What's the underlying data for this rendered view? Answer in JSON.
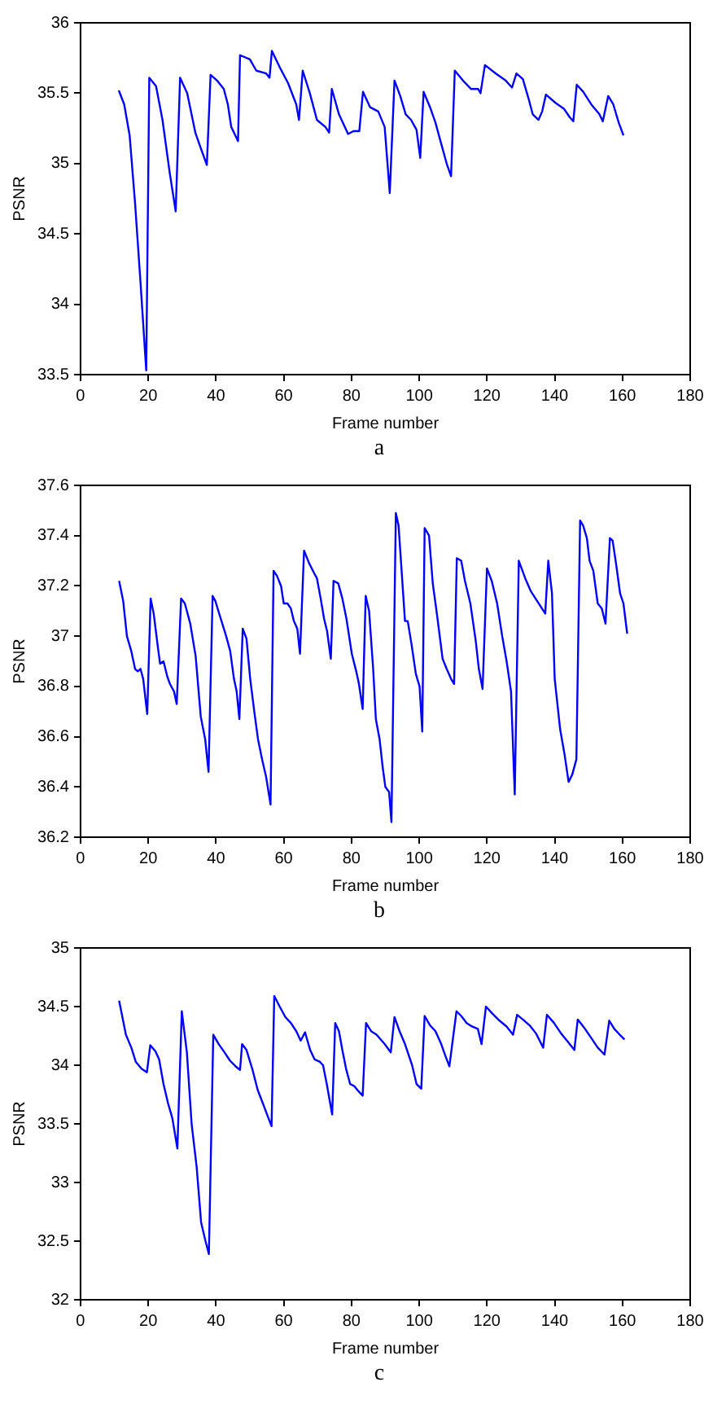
{
  "chart_data": [
    {
      "type": "line",
      "xlabel": "Frame number",
      "ylabel": "PSNR",
      "color": "#0000ff",
      "xlim": [
        0,
        180
      ],
      "xticks": [
        0,
        20,
        40,
        60,
        80,
        100,
        120,
        140,
        160,
        180
      ],
      "ylim": [
        33.5,
        36
      ],
      "yticks": [
        33.5,
        34,
        34.5,
        35,
        35.5,
        36
      ],
      "annotations": [
        "a"
      ],
      "x": [
        11.3,
        12.9,
        14.5,
        16.1,
        17.7,
        19.4,
        20.3,
        22.3,
        24.2,
        26.3,
        28.1,
        29.4,
        31.5,
        33.9,
        35.5,
        37.3,
        38.4,
        40.3,
        42.3,
        43.5,
        44.5,
        46.5,
        47.1,
        50,
        51.9,
        54.8,
        55.8,
        56.5,
        58.9,
        61.3,
        63.7,
        64.5,
        65.6,
        67.7,
        69.8,
        72.3,
        73.4,
        74.2,
        76.3,
        79,
        80.6,
        82.3,
        83.4,
        85.5,
        87.9,
        89.8,
        91.3,
        92.7,
        94.4,
        96,
        97.6,
        99.2,
        100.3,
        101.3,
        103.2,
        104.8,
        106.5,
        108.1,
        109.4,
        110.5,
        112.9,
        115.3,
        117.4,
        118.1,
        119.4,
        122.6,
        125.5,
        127.4,
        128.7,
        130.6,
        132.3,
        133.5,
        135.2,
        136.3,
        137.4,
        140.3,
        142.7,
        144.4,
        145.5,
        146.5,
        148.4,
        150.8,
        153.2,
        154.2,
        155.8,
        157.3,
        158.9,
        160.3
      ],
      "values": [
        35.52,
        35.42,
        35.2,
        34.72,
        34.16,
        33.53,
        35.61,
        35.55,
        35.31,
        34.94,
        34.66,
        35.61,
        35.5,
        35.22,
        35.11,
        34.99,
        35.63,
        35.59,
        35.53,
        35.42,
        35.26,
        35.16,
        35.77,
        35.74,
        35.66,
        35.64,
        35.61,
        35.8,
        35.68,
        35.57,
        35.42,
        35.31,
        35.66,
        35.5,
        35.31,
        35.26,
        35.22,
        35.53,
        35.35,
        35.21,
        35.23,
        35.23,
        35.51,
        35.4,
        35.37,
        35.26,
        34.79,
        35.59,
        35.48,
        35.35,
        35.31,
        35.24,
        35.04,
        35.51,
        35.4,
        35.29,
        35.14,
        35.0,
        34.91,
        35.66,
        35.59,
        35.53,
        35.53,
        35.5,
        35.7,
        35.64,
        35.59,
        35.54,
        35.64,
        35.6,
        35.46,
        35.35,
        35.31,
        35.37,
        35.49,
        35.43,
        35.39,
        35.33,
        35.3,
        35.56,
        35.51,
        35.42,
        35.35,
        35.3,
        35.48,
        35.42,
        35.29,
        35.2
      ]
    },
    {
      "type": "line",
      "xlabel": "Frame number",
      "ylabel": "PSNR",
      "color": "#0000ff",
      "xlim": [
        0,
        180
      ],
      "xticks": [
        0,
        20,
        40,
        60,
        80,
        100,
        120,
        140,
        160,
        180
      ],
      "ylim": [
        36.2,
        37.6
      ],
      "yticks": [
        36.2,
        36.4,
        36.6,
        36.8,
        37,
        37.2,
        37.4,
        37.6
      ],
      "annotations": [
        "b"
      ],
      "x": [
        11.4,
        12.6,
        13.7,
        15,
        16.1,
        16.9,
        17.7,
        18.5,
        19.7,
        20.7,
        21.6,
        22.9,
        23.5,
        24.5,
        25.6,
        26.4,
        27.6,
        28.4,
        29.7,
        30.8,
        32.4,
        34,
        35.5,
        36.8,
        37.8,
        39,
        39.8,
        41.4,
        43,
        44.2,
        45.3,
        46.1,
        46.9,
        47.9,
        49,
        50.1,
        51.3,
        52.4,
        53.6,
        54.8,
        56.1,
        57,
        58,
        59.2,
        60,
        61.1,
        62.1,
        63,
        64,
        64.8,
        66,
        67.5,
        69,
        69.8,
        70.9,
        71.9,
        72.8,
        73.9,
        74.7,
        76.1,
        77.3,
        78.5,
        80.1,
        81.4,
        82.2,
        83.3,
        84.2,
        85.2,
        86.4,
        87.2,
        88.3,
        89.2,
        90,
        91.1,
        91.8,
        93.1,
        93.9,
        95.8,
        96.6,
        97.7,
        99,
        100.1,
        100.9,
        101.6,
        102.9,
        104,
        105.3,
        106.9,
        108.1,
        109.4,
        110.3,
        111.1,
        112.4,
        113.5,
        115.1,
        116.7,
        117.6,
        118.7,
        120,
        121.4,
        123,
        124.5,
        125.8,
        127.1,
        128.2,
        129.4,
        131.3,
        132.9,
        135.3,
        137.2,
        138.1,
        139.2,
        140,
        141.6,
        142.9,
        144.1,
        145.2,
        146.4,
        147.5,
        148.4,
        149.5,
        150.3,
        151.4,
        152.7,
        153.9,
        155,
        156.3,
        157.1,
        158.2,
        159.3,
        160.3,
        161.4
      ],
      "values": [
        37.22,
        37.14,
        37.0,
        36.94,
        36.87,
        36.86,
        36.87,
        36.83,
        36.69,
        37.15,
        37.09,
        36.95,
        36.89,
        36.9,
        36.84,
        36.81,
        36.78,
        36.73,
        37.15,
        37.13,
        37.05,
        36.92,
        36.68,
        36.59,
        36.46,
        37.16,
        37.14,
        37.07,
        37.0,
        36.94,
        36.83,
        36.78,
        36.67,
        37.03,
        36.99,
        36.83,
        36.7,
        36.59,
        36.51,
        36.44,
        36.33,
        37.26,
        37.24,
        37.2,
        37.13,
        37.13,
        37.11,
        37.06,
        37.03,
        36.93,
        37.34,
        37.29,
        37.25,
        37.23,
        37.15,
        37.07,
        37.02,
        36.91,
        37.22,
        37.21,
        37.15,
        37.07,
        36.93,
        36.86,
        36.81,
        36.71,
        37.16,
        37.1,
        36.87,
        36.67,
        36.59,
        36.48,
        36.4,
        36.38,
        36.26,
        37.49,
        37.44,
        37.06,
        37.06,
        36.97,
        36.85,
        36.8,
        36.62,
        37.43,
        37.4,
        37.21,
        37.08,
        36.91,
        36.87,
        36.83,
        36.81,
        37.31,
        37.3,
        37.22,
        37.13,
        36.98,
        36.87,
        36.79,
        37.27,
        37.22,
        37.13,
        37.0,
        36.9,
        36.78,
        36.37,
        37.3,
        37.23,
        37.18,
        37.13,
        37.09,
        37.3,
        37.17,
        36.83,
        36.63,
        36.53,
        36.42,
        36.45,
        36.51,
        37.46,
        37.44,
        37.39,
        37.3,
        37.26,
        37.13,
        37.11,
        37.05,
        37.39,
        37.38,
        37.28,
        37.17,
        37.13,
        37.01
      ]
    },
    {
      "type": "line",
      "xlabel": "Frame number",
      "ylabel": "PSNR",
      "color": "#0000ff",
      "xlim": [
        0,
        180
      ],
      "xticks": [
        0,
        20,
        40,
        60,
        80,
        100,
        120,
        140,
        160,
        180
      ],
      "ylim": [
        32,
        35
      ],
      "yticks": [
        32,
        32.5,
        33,
        33.5,
        34,
        34.5,
        35
      ],
      "annotations": [
        "c"
      ],
      "x": [
        11.4,
        13.4,
        15,
        16.3,
        18,
        19.6,
        20.6,
        22.1,
        23.2,
        24.5,
        25.8,
        27.1,
        28.6,
        29.9,
        31.4,
        32.8,
        34.3,
        35.6,
        36.9,
        37.9,
        39.2,
        40.8,
        42.5,
        44.1,
        45.8,
        47.1,
        47.7,
        49,
        50.7,
        52.3,
        53.9,
        55.2,
        56.4,
        57.2,
        58.8,
        60.5,
        62.1,
        63.7,
        65,
        66.3,
        67.8,
        69.1,
        70.6,
        71.6,
        72.7,
        73.5,
        74.3,
        75.2,
        76.3,
        77.3,
        78.4,
        79.6,
        80.9,
        82,
        83.3,
        84.3,
        85.8,
        87.4,
        89.8,
        91.6,
        92.7,
        94.2,
        95.8,
        97.9,
        99.2,
        100.6,
        101.6,
        103.2,
        104.8,
        106.5,
        107.6,
        108.9,
        111,
        112.4,
        114,
        115.6,
        117.3,
        118.4,
        119.7,
        121.6,
        123.7,
        125.8,
        127.7,
        128.9,
        130.6,
        132.6,
        134.5,
        136.6,
        137.7,
        139.8,
        141.9,
        143.9,
        145.8,
        146.8,
        148.7,
        150.6,
        152.7,
        154.7,
        156.1,
        157.6,
        159.2,
        160.6
      ],
      "values": [
        34.55,
        34.26,
        34.15,
        34.03,
        33.97,
        33.94,
        34.17,
        34.12,
        34.05,
        33.84,
        33.68,
        33.55,
        33.29,
        34.46,
        34.11,
        33.5,
        33.13,
        32.66,
        32.5,
        32.39,
        34.26,
        34.18,
        34.11,
        34.04,
        33.99,
        33.96,
        34.18,
        34.13,
        33.97,
        33.79,
        33.67,
        33.57,
        33.48,
        34.59,
        34.5,
        34.41,
        34.36,
        34.29,
        34.21,
        34.28,
        34.13,
        34.05,
        34.03,
        34.0,
        33.84,
        33.71,
        33.58,
        34.36,
        34.29,
        34.13,
        33.97,
        33.84,
        33.82,
        33.78,
        33.74,
        34.36,
        34.29,
        34.26,
        34.18,
        34.11,
        34.41,
        34.29,
        34.18,
        34.0,
        33.84,
        33.8,
        34.42,
        34.34,
        34.29,
        34.18,
        34.09,
        33.99,
        34.46,
        34.42,
        34.36,
        34.33,
        34.31,
        34.18,
        34.5,
        34.44,
        34.38,
        34.33,
        34.26,
        34.43,
        34.39,
        34.34,
        34.27,
        34.15,
        34.43,
        34.36,
        34.27,
        34.2,
        34.13,
        34.39,
        34.32,
        34.24,
        34.15,
        34.09,
        34.38,
        34.31,
        34.26,
        34.22
      ]
    }
  ]
}
